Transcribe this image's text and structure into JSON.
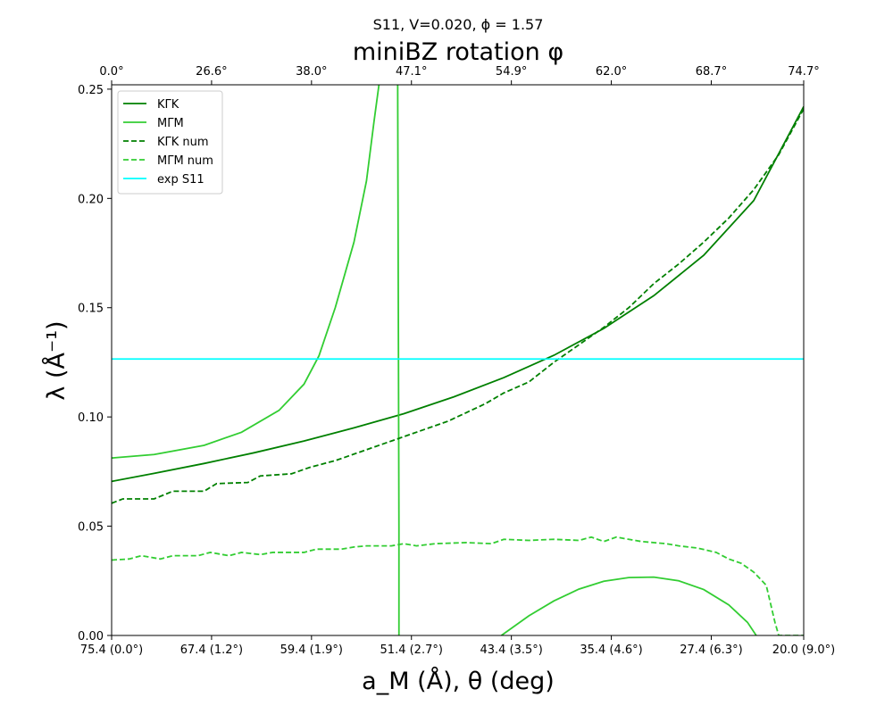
{
  "chart_data": {
    "type": "line",
    "suptitle": "S11, V=0.020, ϕ = 1.57",
    "top_axis_title": "miniBZ rotation φ",
    "xlabel": "a_M (Å), θ (deg)",
    "ylabel": "λ (Å⁻¹)",
    "xlim": [
      75.4,
      20.0
    ],
    "ylim": [
      0.0,
      0.252
    ],
    "x_reversed": true,
    "grid": false,
    "legend_position": "top-left",
    "bottom_ticks": [
      {
        "x": 75.4,
        "label": "75.4 (0.0°)"
      },
      {
        "x": 67.4,
        "label": "67.4 (1.2°)"
      },
      {
        "x": 59.4,
        "label": "59.4 (1.9°)"
      },
      {
        "x": 51.4,
        "label": "51.4 (2.7°)"
      },
      {
        "x": 43.4,
        "label": "43.4 (3.5°)"
      },
      {
        "x": 35.4,
        "label": "35.4 (4.6°)"
      },
      {
        "x": 27.4,
        "label": "27.4 (6.3°)"
      },
      {
        "x": 20.0,
        "label": "20.0 (9.0°)"
      }
    ],
    "top_ticks": [
      {
        "x": 75.4,
        "label": "0.0°"
      },
      {
        "x": 67.4,
        "label": "26.6°"
      },
      {
        "x": 59.4,
        "label": "38.0°"
      },
      {
        "x": 51.4,
        "label": "47.1°"
      },
      {
        "x": 43.4,
        "label": "54.9°"
      },
      {
        "x": 35.4,
        "label": "62.0°"
      },
      {
        "x": 27.4,
        "label": "68.7°"
      },
      {
        "x": 20.0,
        "label": "74.7°"
      }
    ],
    "y_ticks": [
      {
        "y": 0.0,
        "label": "0.00"
      },
      {
        "y": 0.05,
        "label": "0.05"
      },
      {
        "y": 0.1,
        "label": "0.10"
      },
      {
        "y": 0.15,
        "label": "0.15"
      },
      {
        "y": 0.2,
        "label": "0.20"
      },
      {
        "y": 0.25,
        "label": "0.25"
      }
    ],
    "series": [
      {
        "name": "KΓK",
        "color": "#008000",
        "style": "solid",
        "segments": [
          [
            [
              75.4,
              0.0705
            ],
            [
              72.0,
              0.0742
            ],
            [
              68.0,
              0.0787
            ],
            [
              64.0,
              0.0836
            ],
            [
              60.0,
              0.089
            ],
            [
              56.0,
              0.095
            ],
            [
              52.0,
              0.1015
            ],
            [
              48.0,
              0.1092
            ],
            [
              44.0,
              0.118
            ],
            [
              40.0,
              0.1282
            ],
            [
              36.0,
              0.1405
            ],
            [
              32.0,
              0.1555
            ],
            [
              28.0,
              0.174
            ],
            [
              24.0,
              0.199
            ],
            [
              20.0,
              0.242
            ]
          ]
        ]
      },
      {
        "name": "MΓM",
        "color": "#32cd32",
        "style": "solid",
        "segments": [
          [
            [
              75.4,
              0.0812
            ],
            [
              72.0,
              0.0828
            ],
            [
              68.0,
              0.087
            ],
            [
              65.0,
              0.093
            ],
            [
              62.0,
              0.103
            ],
            [
              60.0,
              0.115
            ],
            [
              58.8,
              0.128
            ],
            [
              57.5,
              0.15
            ],
            [
              56.0,
              0.18
            ],
            [
              55.0,
              0.208
            ],
            [
              54.4,
              0.235
            ],
            [
              54.0,
              0.252
            ]
          ],
          [
            [
              52.5,
              0.252
            ],
            [
              52.45,
              0.15
            ],
            [
              52.4,
              0.05
            ],
            [
              52.4,
              0.0
            ]
          ],
          [
            [
              44.2,
              0.0
            ],
            [
              42.0,
              0.009
            ],
            [
              40.0,
              0.0158
            ],
            [
              38.0,
              0.0212
            ],
            [
              36.0,
              0.0248
            ],
            [
              34.0,
              0.0265
            ],
            [
              32.0,
              0.0267
            ],
            [
              30.0,
              0.025
            ],
            [
              28.0,
              0.021
            ],
            [
              26.0,
              0.014
            ],
            [
              24.5,
              0.006
            ],
            [
              23.8,
              0.0
            ]
          ]
        ]
      },
      {
        "name": "KΓK num",
        "color": "#008000",
        "style": "dashed",
        "segments": [
          [
            [
              75.4,
              0.0605
            ],
            [
              74.5,
              0.0625
            ],
            [
              72.0,
              0.0625
            ],
            [
              70.5,
              0.066
            ],
            [
              68.0,
              0.066
            ],
            [
              67.0,
              0.0695
            ],
            [
              64.5,
              0.07
            ],
            [
              63.5,
              0.073
            ],
            [
              61.0,
              0.074
            ],
            [
              59.5,
              0.077
            ],
            [
              57.5,
              0.08
            ],
            [
              56.0,
              0.083
            ],
            [
              54.5,
              0.086
            ],
            [
              53.0,
              0.089
            ],
            [
              51.5,
              0.092
            ],
            [
              50.0,
              0.095
            ],
            [
              48.5,
              0.098
            ],
            [
              47.0,
              0.102
            ],
            [
              45.5,
              0.106
            ],
            [
              44.0,
              0.111
            ],
            [
              42.0,
              0.116
            ],
            [
              40.0,
              0.125
            ],
            [
              38.0,
              0.133
            ],
            [
              36.0,
              0.141
            ],
            [
              34.0,
              0.15
            ],
            [
              32.0,
              0.161
            ],
            [
              30.0,
              0.17
            ],
            [
              28.0,
              0.18
            ],
            [
              26.0,
              0.191
            ],
            [
              24.0,
              0.204
            ],
            [
              22.0,
              0.22
            ],
            [
              20.0,
              0.241
            ]
          ]
        ]
      },
      {
        "name": "MΓM num",
        "color": "#32cd32",
        "style": "dashed",
        "segments": [
          [
            [
              75.4,
              0.0345
            ],
            [
              74.0,
              0.035
            ],
            [
              73.0,
              0.0365
            ],
            [
              71.5,
              0.035
            ],
            [
              70.5,
              0.0365
            ],
            [
              68.5,
              0.0365
            ],
            [
              67.5,
              0.038
            ],
            [
              66.0,
              0.0365
            ],
            [
              65.0,
              0.038
            ],
            [
              63.5,
              0.037
            ],
            [
              62.5,
              0.038
            ],
            [
              60.0,
              0.038
            ],
            [
              59.0,
              0.0395
            ],
            [
              57.0,
              0.0395
            ],
            [
              56.0,
              0.0405
            ],
            [
              55.0,
              0.041
            ],
            [
              53.0,
              0.041
            ],
            [
              52.0,
              0.042
            ],
            [
              51.0,
              0.041
            ],
            [
              49.5,
              0.042
            ],
            [
              47.0,
              0.0425
            ],
            [
              45.0,
              0.042
            ],
            [
              44.0,
              0.044
            ],
            [
              42.0,
              0.0435
            ],
            [
              40.0,
              0.044
            ],
            [
              38.0,
              0.0435
            ],
            [
              37.0,
              0.045
            ],
            [
              36.0,
              0.043
            ],
            [
              35.0,
              0.045
            ],
            [
              33.0,
              0.043
            ],
            [
              31.0,
              0.042
            ],
            [
              30.0,
              0.041
            ],
            [
              28.5,
              0.04
            ],
            [
              27.0,
              0.038
            ],
            [
              26.0,
              0.035
            ],
            [
              25.0,
              0.033
            ],
            [
              24.0,
              0.029
            ],
            [
              23.0,
              0.023
            ],
            [
              22.3,
              0.006
            ],
            [
              22.0,
              0.0
            ],
            [
              20.0,
              0.0
            ]
          ]
        ]
      },
      {
        "name": "exp S11",
        "color": "#00ffff",
        "style": "solid",
        "segments": [
          [
            [
              75.4,
              0.1265
            ],
            [
              20.0,
              0.1265
            ]
          ]
        ]
      }
    ]
  }
}
